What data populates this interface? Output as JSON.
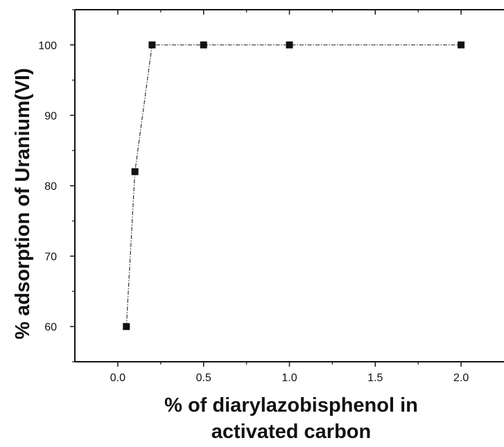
{
  "chart_data": {
    "type": "line",
    "title": "",
    "xlabel_lines": [
      "% of diarylazobisphenol in",
      "activated carbon"
    ],
    "ylabel": "% adsorption of Uranium(VI)",
    "x": [
      0.05,
      0.1,
      0.2,
      0.5,
      1.0,
      2.0
    ],
    "series": [
      {
        "values": [
          60,
          82,
          100,
          100,
          100,
          100
        ]
      }
    ],
    "xlim": [
      -0.25,
      2.25
    ],
    "ylim": [
      55,
      105
    ],
    "x_tick_labels": [
      "0.0",
      "0.5",
      "1.0",
      "1.5",
      "2.0"
    ],
    "y_tick_labels": [
      "60",
      "70",
      "80",
      "90",
      "100"
    ],
    "grid": false,
    "legend": "none",
    "marker": "square",
    "line_style": "dash-dot",
    "colors": {
      "marker": "#111111",
      "line": "#333333",
      "axis": "#111111",
      "background": "#ffffff"
    }
  }
}
